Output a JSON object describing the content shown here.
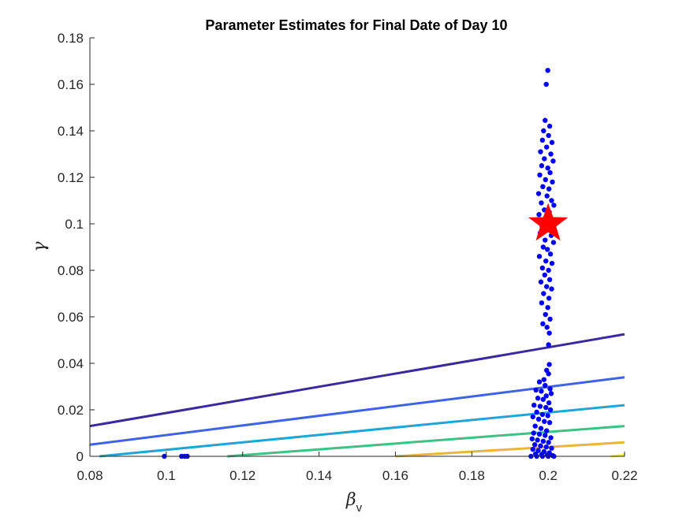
{
  "chart_data": {
    "type": "scatter",
    "title": "Parameter Estimates for Final Date of Day 10",
    "xlabel": {
      "symbol": "β",
      "subscript": "v"
    },
    "ylabel": "γ",
    "xlim": [
      0.08,
      0.22
    ],
    "ylim": [
      0,
      0.18
    ],
    "xticks": [
      "0.08",
      "0.1",
      "0.12",
      "0.14",
      "0.16",
      "0.18",
      "0.2",
      "0.22"
    ],
    "yticks": [
      "0",
      "0.02",
      "0.04",
      "0.06",
      "0.08",
      "0.1",
      "0.12",
      "0.14",
      "0.16",
      "0.18"
    ],
    "grid": false,
    "marker_color": "#0000ff",
    "estimates": [
      [
        0.1999,
        0.166
      ],
      [
        0.1995,
        0.16
      ],
      [
        0.1992,
        0.1445
      ],
      [
        0.2004,
        0.142
      ],
      [
        0.1988,
        0.14
      ],
      [
        0.2001,
        0.138
      ],
      [
        0.1985,
        0.136
      ],
      [
        0.201,
        0.135
      ],
      [
        0.1996,
        0.133
      ],
      [
        0.198,
        0.131
      ],
      [
        0.2007,
        0.13
      ],
      [
        0.199,
        0.128
      ],
      [
        0.2013,
        0.127
      ],
      [
        0.1983,
        0.125
      ],
      [
        0.1999,
        0.124
      ],
      [
        0.2005,
        0.122
      ],
      [
        0.1978,
        0.121
      ],
      [
        0.1993,
        0.119
      ],
      [
        0.2011,
        0.118
      ],
      [
        0.1986,
        0.116
      ],
      [
        0.2002,
        0.115
      ],
      [
        0.1975,
        0.113
      ],
      [
        0.1997,
        0.112
      ],
      [
        0.2009,
        0.11
      ],
      [
        0.1982,
        0.109
      ],
      [
        0.2015,
        0.108
      ],
      [
        0.199,
        0.106
      ],
      [
        0.2003,
        0.105
      ],
      [
        0.1976,
        0.104
      ],
      [
        0.1995,
        0.102
      ],
      [
        0.2012,
        0.101
      ],
      [
        0.1984,
        0.099
      ],
      [
        0.2,
        0.098
      ],
      [
        0.1979,
        0.096
      ],
      [
        0.2008,
        0.095
      ],
      [
        0.1992,
        0.093
      ],
      [
        0.2014,
        0.092
      ],
      [
        0.1987,
        0.09
      ],
      [
        0.1998,
        0.089
      ],
      [
        0.2006,
        0.087
      ],
      [
        0.1977,
        0.086
      ],
      [
        0.1994,
        0.084
      ],
      [
        0.201,
        0.083
      ],
      [
        0.1985,
        0.081
      ],
      [
        0.2001,
        0.08
      ],
      [
        0.1991,
        0.078
      ],
      [
        0.2004,
        0.076
      ],
      [
        0.1981,
        0.075
      ],
      [
        0.1996,
        0.073
      ],
      [
        0.2009,
        0.072
      ],
      [
        0.1988,
        0.07
      ],
      [
        0.2002,
        0.068
      ],
      [
        0.1983,
        0.066
      ],
      [
        0.1999,
        0.064
      ],
      [
        0.1993,
        0.061
      ],
      [
        0.2005,
        0.059
      ],
      [
        0.1986,
        0.057
      ],
      [
        0.1997,
        0.0555
      ],
      [
        0.2003,
        0.053
      ],
      [
        0.2001,
        0.048
      ],
      [
        0.2003,
        0.0395
      ],
      [
        0.1996,
        0.037
      ],
      [
        0.2001,
        0.0355
      ],
      [
        0.1989,
        0.033
      ],
      [
        0.1977,
        0.032
      ],
      [
        0.1992,
        0.0305
      ],
      [
        0.2005,
        0.029
      ],
      [
        0.1968,
        0.0285
      ],
      [
        0.1982,
        0.028
      ],
      [
        0.2008,
        0.027
      ],
      [
        0.1995,
        0.026
      ],
      [
        0.1973,
        0.025
      ],
      [
        0.1987,
        0.0245
      ],
      [
        0.2002,
        0.023
      ],
      [
        0.1963,
        0.022
      ],
      [
        0.1979,
        0.0215
      ],
      [
        0.1994,
        0.021
      ],
      [
        0.2006,
        0.02
      ],
      [
        0.197,
        0.019
      ],
      [
        0.1985,
        0.018
      ],
      [
        0.1999,
        0.0175
      ],
      [
        0.196,
        0.017
      ],
      [
        0.1975,
        0.016
      ],
      [
        0.199,
        0.015
      ],
      [
        0.2004,
        0.0145
      ],
      [
        0.1966,
        0.013
      ],
      [
        0.1981,
        0.012
      ],
      [
        0.1996,
        0.011
      ],
      [
        0.1962,
        0.01
      ],
      [
        0.1977,
        0.0095
      ],
      [
        0.1992,
        0.009
      ],
      [
        0.2007,
        0.008
      ],
      [
        0.1958,
        0.0075
      ],
      [
        0.1972,
        0.007
      ],
      [
        0.1987,
        0.0065
      ],
      [
        0.2001,
        0.006
      ],
      [
        0.1965,
        0.005
      ],
      [
        0.198,
        0.0045
      ],
      [
        0.1995,
        0.004
      ],
      [
        0.2009,
        0.0035
      ],
      [
        0.196,
        0.003
      ],
      [
        0.1974,
        0.0025
      ],
      [
        0.1989,
        0.002
      ],
      [
        0.2003,
        0.0015
      ],
      [
        0.1967,
        0.001
      ],
      [
        0.1983,
        0.0008
      ],
      [
        0.1998,
        0.0005
      ],
      [
        0.2012,
        0.0003
      ],
      [
        0.1955,
        0.0
      ],
      [
        0.197,
        0.0
      ],
      [
        0.1985,
        0.0
      ],
      [
        0.2,
        0.0
      ],
      [
        0.2015,
        0.0
      ],
      [
        0.0995,
        0.0
      ],
      [
        0.104,
        0.0
      ],
      [
        0.1048,
        0.0
      ],
      [
        0.1055,
        0.0
      ]
    ],
    "true_value": {
      "beta_v": 0.2,
      "gamma": 0.1,
      "marker": "star",
      "color": "#ff0000"
    },
    "contour_lines": [
      {
        "color": "#3a2a9e",
        "points": [
          [
            0.08,
            0.013
          ],
          [
            0.22,
            0.0525
          ]
        ]
      },
      {
        "color": "#3f63e8",
        "points": [
          [
            0.08,
            0.005
          ],
          [
            0.22,
            0.034
          ]
        ]
      },
      {
        "color": "#1fa6d8",
        "points": [
          [
            0.0825,
            0.0
          ],
          [
            0.22,
            0.022
          ]
        ]
      },
      {
        "color": "#3dc285",
        "points": [
          [
            0.116,
            0.0
          ],
          [
            0.22,
            0.013
          ]
        ]
      },
      {
        "color": "#eab53a",
        "points": [
          [
            0.16,
            0.0
          ],
          [
            0.22,
            0.006
          ]
        ]
      },
      {
        "color": "#f5f50f",
        "points": [
          [
            0.2165,
            0.0
          ],
          [
            0.22,
            0.0005
          ]
        ]
      }
    ]
  }
}
